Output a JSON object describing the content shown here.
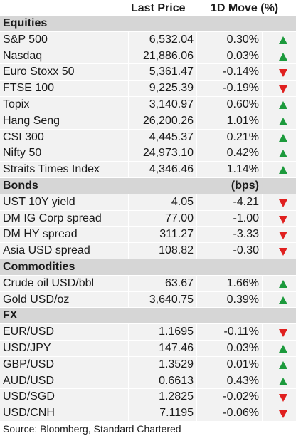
{
  "header": {
    "col_price": "Last Price",
    "col_move": "1D Move (%)"
  },
  "sections": [
    {
      "title": "Equities",
      "unit": "",
      "rows": [
        {
          "name": "S&P 500",
          "price": "6,532.04",
          "move": "0.30%",
          "dir": "up"
        },
        {
          "name": "Nasdaq",
          "price": "21,886.06",
          "move": "0.03%",
          "dir": "up"
        },
        {
          "name": "Euro Stoxx 50",
          "price": "5,361.47",
          "move": "-0.14%",
          "dir": "down"
        },
        {
          "name": "FTSE 100",
          "price": "9,225.39",
          "move": "-0.19%",
          "dir": "down"
        },
        {
          "name": "Topix",
          "price": "3,140.97",
          "move": "0.60%",
          "dir": "up"
        },
        {
          "name": "Hang Seng",
          "price": "26,200.26",
          "move": "1.01%",
          "dir": "up"
        },
        {
          "name": "CSI 300",
          "price": "4,445.37",
          "move": "0.21%",
          "dir": "up"
        },
        {
          "name": "Nifty 50",
          "price": "24,973.10",
          "move": "0.42%",
          "dir": "up"
        },
        {
          "name": "Straits Times Index",
          "price": "4,346.46",
          "move": "1.14%",
          "dir": "up"
        }
      ]
    },
    {
      "title": "Bonds",
      "unit": "(bps)",
      "rows": [
        {
          "name": "UST 10Y yield",
          "price": "4.05",
          "move": "-4.21",
          "dir": "down"
        },
        {
          "name": "DM IG Corp spread",
          "price": "77.00",
          "move": "-1.00",
          "dir": "down"
        },
        {
          "name": "DM HY spread",
          "price": "311.27",
          "move": "-3.33",
          "dir": "down"
        },
        {
          "name": "Asia USD spread",
          "price": "108.82",
          "move": "-0.30",
          "dir": "down"
        }
      ]
    },
    {
      "title": "Commodities",
      "unit": "",
      "rows": [
        {
          "name": "Crude oil USD/bbl",
          "price": "63.67",
          "move": "1.66%",
          "dir": "up"
        },
        {
          "name": "Gold USD/oz",
          "price": "3,640.75",
          "move": "0.39%",
          "dir": "up"
        }
      ]
    },
    {
      "title": "FX",
      "unit": "",
      "rows": [
        {
          "name": "EUR/USD",
          "price": "1.1695",
          "move": "-0.11%",
          "dir": "down"
        },
        {
          "name": "USD/JPY",
          "price": "147.46",
          "move": "0.03%",
          "dir": "up"
        },
        {
          "name": "GBP/USD",
          "price": "1.3529",
          "move": "0.01%",
          "dir": "up"
        },
        {
          "name": "AUD/USD",
          "price": "0.6613",
          "move": "0.43%",
          "dir": "up"
        },
        {
          "name": "USD/SGD",
          "price": "1.2825",
          "move": "-0.02%",
          "dir": "down"
        },
        {
          "name": "USD/CNH",
          "price": "7.1195",
          "move": "-0.06%",
          "dir": "down"
        }
      ]
    }
  ],
  "source": "Source: Bloomberg, Standard Chartered",
  "colors": {
    "up": "#1c9a3c",
    "down": "#e0201f",
    "section_bg": "#d6d6d6",
    "row_bg": "#f2f2f2"
  }
}
